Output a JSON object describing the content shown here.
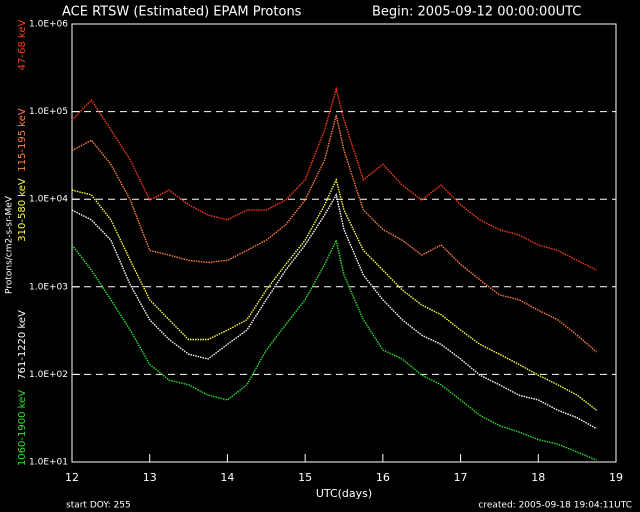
{
  "chart_data": {
    "type": "line",
    "title": "ACE RTSW (Estimated) EPAM Protons",
    "subtitle": "Begin: 2005-09-12 00:00:00UTC",
    "xlabel": "UTC(days)",
    "ylabel": "Protons/cm2-s-sr-MeV",
    "footer": [
      "start DOY:  255",
      "created: 2005-09-18 19:04:11UTC"
    ],
    "x": [
      12,
      12.25,
      12.5,
      12.75,
      13,
      13.25,
      13.5,
      13.75,
      14,
      14.25,
      14.5,
      14.75,
      15,
      15.25,
      15.4,
      15.5,
      15.75,
      16,
      16.25,
      16.5,
      16.75,
      17,
      17.25,
      17.5,
      17.75,
      18,
      18.25,
      18.5,
      18.75
    ],
    "xlim": [
      12,
      19
    ],
    "xticks": [
      12,
      13,
      14,
      15,
      16,
      17,
      18,
      19
    ],
    "ylim": [
      10,
      1000000
    ],
    "log_y": true,
    "grid": true,
    "yticks": [
      {
        "value": 10,
        "label": "1.0E+01"
      },
      {
        "value": 100,
        "label": "1.0E+02"
      },
      {
        "value": 1000,
        "label": "1.0E+03"
      },
      {
        "value": 10000,
        "label": "1.0E+04"
      },
      {
        "value": 100000,
        "label": "1.0E+05"
      },
      {
        "value": 1000000,
        "label": "1.0E+06"
      }
    ],
    "series": [
      {
        "name": "47-68 keV",
        "color": "#ff3a1a",
        "values": [
          80000,
          135000,
          62000,
          28000,
          9800,
          12700,
          8600,
          6600,
          5800,
          7500,
          7500,
          9800,
          16600,
          62000,
          180000,
          80000,
          16600,
          25000,
          14500,
          9800,
          14500,
          8600,
          5800,
          4500,
          3900,
          3000,
          2600,
          2000,
          1550
        ]
      },
      {
        "name": "115-195 keV",
        "color": "#ff8040",
        "values": [
          36000,
          47000,
          25000,
          9800,
          2600,
          2300,
          2000,
          1900,
          2000,
          2600,
          3400,
          5100,
          9800,
          28000,
          91000,
          36000,
          7500,
          4500,
          3400,
          2300,
          3000,
          1800,
          1200,
          810,
          710,
          540,
          420,
          280,
          180
        ]
      },
      {
        "name": "310-580 keV",
        "color": "#ffff40",
        "values": [
          12700,
          11200,
          5800,
          2000,
          710,
          420,
          250,
          250,
          320,
          420,
          920,
          1800,
          3400,
          8600,
          16600,
          7500,
          2600,
          1550,
          920,
          620,
          480,
          320,
          220,
          170,
          130,
          98,
          76,
          58,
          39
        ]
      },
      {
        "name": "761-1220 keV",
        "color": "#ffffff",
        "values": [
          7500,
          5800,
          3400,
          1050,
          420,
          250,
          170,
          150,
          220,
          320,
          710,
          1550,
          3000,
          6600,
          11200,
          4500,
          1360,
          710,
          420,
          280,
          220,
          150,
          98,
          76,
          58,
          51,
          39,
          32,
          24
        ]
      },
      {
        "name": "1060-1900 keV",
        "color": "#30e030",
        "values": [
          3000,
          1550,
          710,
          320,
          130,
          86,
          76,
          58,
          51,
          76,
          190,
          370,
          710,
          1800,
          3400,
          1360,
          420,
          190,
          150,
          98,
          76,
          51,
          34,
          26,
          22,
          18,
          16,
          13,
          10.5
        ]
      }
    ]
  }
}
